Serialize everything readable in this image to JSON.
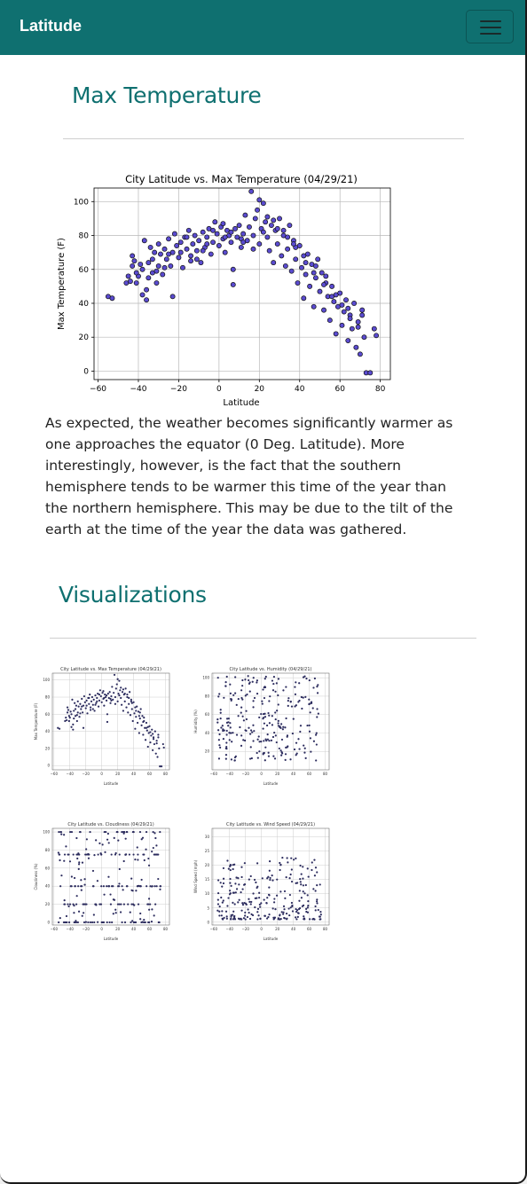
{
  "navbar": {
    "brand": "Latitude",
    "menu_icon": "hamburger-menu-icon"
  },
  "max_temp": {
    "heading": "Max Temperature",
    "description": "As expected, the weather becomes significantly warmer as one approaches the equator (0 Deg. Latitude). More interestingly, however, is the fact that the southern hemisphere tends to be warmer this time of the year than the northern hemisphere. This may be due to the tilt of the earth at the time of the year the data was gathered."
  },
  "visualizations": {
    "heading": "Visualizations",
    "thumbnails": [
      {
        "title": "City Latitude vs. Max Temperature (04/29/21)",
        "ylabel": "Max Temperature (F)",
        "xlabel": "Latitude"
      },
      {
        "title": "City Latitude vs. Humidity (04/29/21)",
        "ylabel": "Humidity (%)",
        "xlabel": "Latitude"
      },
      {
        "title": "City Latitude vs. Cloudiness (04/29/21)",
        "ylabel": "Cloudiness (%)",
        "xlabel": "Latitude"
      },
      {
        "title": "City Latitude vs. Wind Speed (04/29/21)",
        "ylabel": "Wind Speed (mph)",
        "xlabel": "Latitude"
      }
    ]
  },
  "colors": {
    "accent": "#0f7070",
    "marker_fill": "#5a4bd0",
    "marker_edge": "#111111",
    "thumb_marker": "#2c2c5e"
  },
  "chart_data": [
    {
      "type": "scatter",
      "title": "City Latitude vs. Max Temperature (04/29/21)",
      "xlabel": "Latitude",
      "ylabel": "Max Temperature (F)",
      "xlim": [
        -62,
        85
      ],
      "ylim": [
        -5,
        108
      ],
      "xticks": [
        -60,
        -40,
        -20,
        0,
        20,
        40,
        60,
        80
      ],
      "yticks": [
        0,
        20,
        40,
        60,
        80,
        100
      ],
      "grid": true,
      "points": [
        [
          -55,
          44
        ],
        [
          -53,
          43
        ],
        [
          -46,
          52
        ],
        [
          -45,
          56
        ],
        [
          -44,
          53
        ],
        [
          -43,
          62
        ],
        [
          -43,
          68
        ],
        [
          -42,
          65
        ],
        [
          -41,
          52
        ],
        [
          -40,
          56
        ],
        [
          -38,
          60
        ],
        [
          -38,
          45
        ],
        [
          -37,
          77
        ],
        [
          -36,
          42
        ],
        [
          -35,
          55
        ],
        [
          -35,
          64
        ],
        [
          -34,
          73
        ],
        [
          -33,
          58
        ],
        [
          -33,
          66
        ],
        [
          -32,
          70
        ],
        [
          -31,
          52
        ],
        [
          -30,
          75
        ],
        [
          -30,
          62
        ],
        [
          -29,
          69
        ],
        [
          -28,
          57
        ],
        [
          -27,
          72
        ],
        [
          -26,
          66
        ],
        [
          -25,
          78
        ],
        [
          -24,
          62
        ],
        [
          -23,
          70
        ],
        [
          -23,
          44
        ],
        [
          -22,
          81
        ],
        [
          -21,
          74
        ],
        [
          -20,
          67
        ],
        [
          -19,
          76
        ],
        [
          -18,
          61
        ],
        [
          -17,
          79
        ],
        [
          -16,
          72
        ],
        [
          -15,
          83
        ],
        [
          -14,
          68
        ],
        [
          -13,
          75
        ],
        [
          -12,
          80
        ],
        [
          -11,
          71
        ],
        [
          -10,
          77
        ],
        [
          -9,
          64
        ],
        [
          -8,
          82
        ],
        [
          -7,
          73
        ],
        [
          -6,
          79
        ],
        [
          -5,
          84
        ],
        [
          -4,
          69
        ],
        [
          -3,
          76
        ],
        [
          -2,
          88
        ],
        [
          -1,
          81
        ],
        [
          0,
          74
        ],
        [
          1,
          85
        ],
        [
          2,
          78
        ],
        [
          3,
          70
        ],
        [
          4,
          83
        ],
        [
          5,
          80
        ],
        [
          6,
          76
        ],
        [
          7,
          60
        ],
        [
          7,
          51
        ],
        [
          8,
          84
        ],
        [
          9,
          79
        ],
        [
          10,
          86
        ],
        [
          11,
          73
        ],
        [
          12,
          81
        ],
        [
          13,
          92
        ],
        [
          14,
          77
        ],
        [
          15,
          85
        ],
        [
          16,
          106
        ],
        [
          17,
          80
        ],
        [
          18,
          90
        ],
        [
          19,
          95
        ],
        [
          20,
          101
        ],
        [
          20,
          75
        ],
        [
          21,
          84
        ],
        [
          22,
          99
        ],
        [
          23,
          88
        ],
        [
          24,
          79
        ],
        [
          25,
          71
        ],
        [
          26,
          86
        ],
        [
          27,
          64
        ],
        [
          28,
          83
        ],
        [
          29,
          75
        ],
        [
          30,
          90
        ],
        [
          31,
          68
        ],
        [
          32,
          80
        ],
        [
          33,
          62
        ],
        [
          34,
          72
        ],
        [
          35,
          86
        ],
        [
          36,
          59
        ],
        [
          37,
          77
        ],
        [
          38,
          66
        ],
        [
          39,
          52
        ],
        [
          40,
          74
        ],
        [
          41,
          61
        ],
        [
          42,
          43
        ],
        [
          43,
          57
        ],
        [
          44,
          69
        ],
        [
          45,
          50
        ],
        [
          46,
          63
        ],
        [
          47,
          38
        ],
        [
          48,
          55
        ],
        [
          49,
          66
        ],
        [
          50,
          47
        ],
        [
          51,
          58
        ],
        [
          52,
          36
        ],
        [
          53,
          52
        ],
        [
          54,
          44
        ],
        [
          55,
          30
        ],
        [
          56,
          50
        ],
        [
          57,
          41
        ],
        [
          58,
          22
        ],
        [
          59,
          38
        ],
        [
          60,
          46
        ],
        [
          61,
          27
        ],
        [
          62,
          35
        ],
        [
          63,
          42
        ],
        [
          64,
          18
        ],
        [
          65,
          33
        ],
        [
          66,
          25
        ],
        [
          67,
          40
        ],
        [
          68,
          14
        ],
        [
          69,
          29
        ],
        [
          70,
          10
        ],
        [
          71,
          36
        ],
        [
          72,
          20
        ],
        [
          73,
          -1
        ],
        [
          75,
          -1
        ],
        [
          77,
          25
        ],
        [
          78,
          21
        ],
        [
          -36,
          48
        ],
        [
          -39,
          63
        ],
        [
          -27,
          61
        ],
        [
          -19,
          70
        ],
        [
          -14,
          65
        ],
        [
          -8,
          71
        ],
        [
          -3,
          83
        ],
        [
          2,
          87
        ],
        [
          6,
          82
        ],
        [
          11,
          78
        ],
        [
          17,
          72
        ],
        [
          24,
          91
        ],
        [
          29,
          84
        ],
        [
          34,
          79
        ],
        [
          38,
          73
        ],
        [
          43,
          64
        ],
        [
          47,
          58
        ],
        [
          52,
          51
        ],
        [
          56,
          44
        ],
        [
          61,
          39
        ],
        [
          65,
          31
        ],
        [
          69,
          26
        ],
        [
          71,
          33
        ],
        [
          64,
          37
        ],
        [
          58,
          45
        ],
        [
          53,
          56
        ],
        [
          48,
          62
        ],
        [
          42,
          68
        ],
        [
          37,
          75
        ],
        [
          32,
          83
        ],
        [
          27,
          89
        ],
        [
          22,
          82
        ],
        [
          12,
          76
        ],
        [
          3,
          79
        ],
        [
          -6,
          75
        ],
        [
          -11,
          66
        ],
        [
          -16,
          79
        ],
        [
          -25,
          69
        ],
        [
          -31,
          59
        ],
        [
          -41,
          58
        ]
      ]
    }
  ]
}
